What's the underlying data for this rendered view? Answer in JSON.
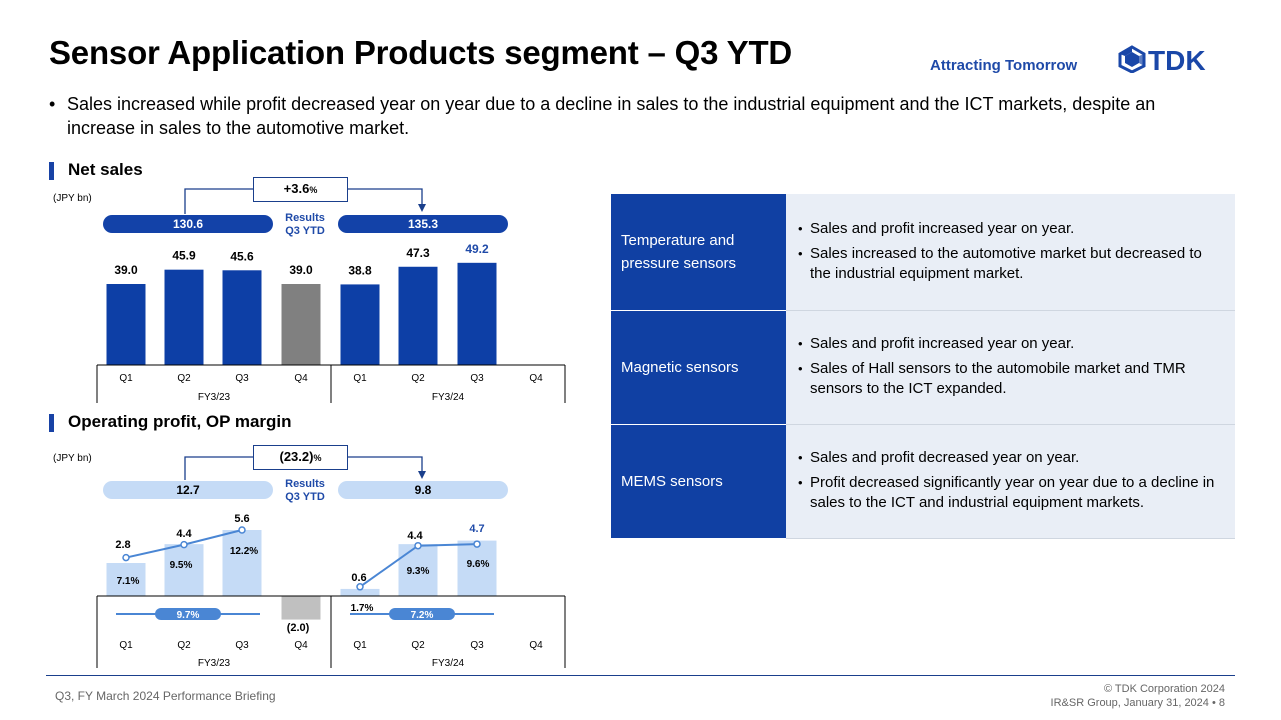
{
  "header": {
    "title": "Sensor Application Products segment – Q3 YTD",
    "tagline": "Attracting Tomorrow",
    "logo_text": "TDK"
  },
  "summary": "Sales increased while profit decreased year on year due to a decline in sales to the industrial equipment  and the ICT markets, despite an increase in sales to the automotive market.",
  "net_sales": {
    "section_title": "Net sales",
    "unit": "(JPY bn)",
    "change": "+3.6",
    "change_suffix": "%",
    "results_label_1": "Results",
    "results_label_2": "Q3 YTD",
    "ytd_prev": "130.6",
    "ytd_curr": "135.3"
  },
  "op_profit": {
    "section_title": "Operating profit, OP margin",
    "unit": "(JPY bn)",
    "change": "(23.2)",
    "change_suffix": "%",
    "results_label_1": "Results",
    "results_label_2": "Q3 YTD",
    "ytd_prev": "12.7",
    "ytd_curr": "9.8"
  },
  "chart_data": [
    {
      "type": "bar",
      "quarters": [
        "Q1",
        "Q2",
        "Q3",
        "Q4",
        "Q1",
        "Q2",
        "Q3",
        "Q4"
      ],
      "groups": [
        "FY3/23",
        "FY3/24"
      ],
      "values": [
        39.0,
        45.9,
        45.6,
        39.0,
        38.8,
        47.3,
        49.2,
        null
      ],
      "labels": [
        "39.0",
        "45.9",
        "45.6",
        "39.0",
        "38.8",
        "47.3",
        "49.2",
        ""
      ],
      "colors": {
        "bar": "#0d3fa6",
        "q4_bar": "#808080",
        "latest_label": "#1f4aa8"
      }
    },
    {
      "type": "bar",
      "quarters": [
        "Q1",
        "Q2",
        "Q3",
        "Q4",
        "Q1",
        "Q2",
        "Q3",
        "Q4"
      ],
      "groups": [
        "FY3/23",
        "FY3/24"
      ],
      "values": [
        2.8,
        4.4,
        5.6,
        -2.0,
        0.6,
        4.4,
        4.7,
        null
      ],
      "labels": [
        "2.8",
        "4.4",
        "5.6",
        "(2.0)",
        "0.6",
        "4.4",
        "4.7",
        ""
      ],
      "margin_series": {
        "values": [
          7.1,
          9.5,
          12.2,
          null,
          1.7,
          9.3,
          9.6,
          null
        ],
        "labels": [
          "7.1%",
          "9.5%",
          "12.2%",
          "",
          "1.7%",
          "9.3%",
          "9.6%",
          ""
        ]
      },
      "annual_margin": [
        "9.7%",
        "7.2%"
      ],
      "colors": {
        "bar": "#c5dbf6",
        "q4_bar": "#c0c0c0",
        "line": "#4a86d4",
        "latest_label": "#1f4aa8"
      }
    }
  ],
  "segments_table": [
    {
      "label": "Temperature and pressure sensors",
      "points": [
        "Sales and profit increased year on year.",
        "Sales increased to the automotive market but decreased to the industrial equipment market."
      ]
    },
    {
      "label": "Magnetic sensors",
      "points": [
        "Sales and profit increased year on year.",
        "Sales of Hall sensors to the automobile market and TMR sensors to the ICT expanded."
      ]
    },
    {
      "label": "MEMS sensors",
      "points": [
        "Sales and profit decreased year on year.",
        "Profit decreased significantly year on year due to a decline in sales to the ICT and industrial equipment markets."
      ]
    }
  ],
  "footer": {
    "left": "Q3, FY March 2024 Performance Briefing",
    "right_line1": "© TDK Corporation 2024",
    "right_line2": "IR&SR Group, January 31, 2024 • 8"
  }
}
